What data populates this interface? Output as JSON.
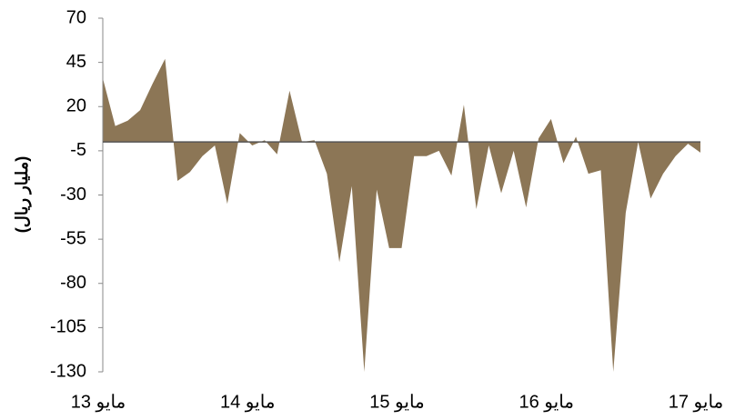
{
  "chart_data": {
    "type": "area",
    "y_label": "(مليار ريال)",
    "categories": [
      "مايو 13",
      null,
      null,
      null,
      null,
      null,
      null,
      null,
      null,
      null,
      null,
      null,
      "مايو 14",
      null,
      null,
      null,
      null,
      null,
      null,
      null,
      null,
      null,
      null,
      null,
      "مايو 15",
      null,
      null,
      null,
      null,
      null,
      null,
      null,
      null,
      null,
      null,
      null,
      "مايو 16",
      null,
      null,
      null,
      null,
      null,
      null,
      null,
      null,
      null,
      null,
      null,
      "مايو 17"
    ],
    "values": [
      36,
      9,
      12,
      18,
      33,
      47,
      -22,
      -17,
      -8,
      -2,
      -35,
      5,
      -2,
      1,
      -7,
      29,
      0,
      1,
      -18,
      -68,
      -25,
      -130,
      -27,
      -60,
      -60,
      -8,
      -8,
      -5,
      -19,
      21,
      -38,
      -2,
      -29,
      -5,
      -37,
      2,
      13,
      -12,
      3,
      -18,
      -16,
      -130,
      -40,
      0,
      -32,
      -18,
      -8,
      -1,
      -6
    ],
    "color": "#8c7656",
    "ylim": [
      -130,
      70
    ],
    "yticks": [
      -130,
      -105,
      -80,
      -55,
      -30,
      -5,
      20,
      45,
      70
    ]
  }
}
